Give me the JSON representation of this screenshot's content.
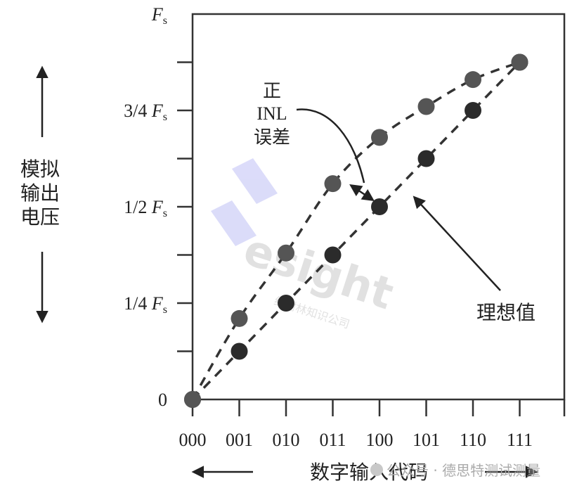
{
  "chart_data": {
    "type": "scatter",
    "x_categories": [
      "000",
      "001",
      "010",
      "011",
      "100",
      "101",
      "110",
      "111"
    ],
    "y_tick_labels": [
      {
        "value": 0,
        "text": "0"
      },
      {
        "value": 0.25,
        "text": "1/4 F",
        "sub": "s"
      },
      {
        "value": 0.5,
        "text": "1/2 F",
        "sub": "s"
      },
      {
        "value": 0.75,
        "text": "3/4 F",
        "sub": "s"
      },
      {
        "value": 1.0,
        "text": "F",
        "sub": "s"
      }
    ],
    "ylim": [
      0,
      1.0
    ],
    "series": [
      {
        "name": "理想值",
        "color": "#2b2b2b",
        "values": [
          0,
          0.125,
          0.25,
          0.375,
          0.5,
          0.625,
          0.75,
          0.875
        ]
      },
      {
        "name": "正INL误差",
        "color": "#555555",
        "values": [
          0,
          0.21,
          0.38,
          0.56,
          0.68,
          0.76,
          0.83,
          0.875
        ]
      }
    ],
    "ylabel": [
      "模拟",
      "输出",
      "电压"
    ],
    "xlabel": "数字输入代码",
    "annotations": {
      "inl": [
        "正",
        "INL",
        "误差"
      ],
      "ideal": "理想值"
    }
  },
  "watermark": {
    "logo_text": "esight",
    "logo_sub": "红树林知识公司",
    "footer": "公众号 · 德思特测试测量"
  }
}
